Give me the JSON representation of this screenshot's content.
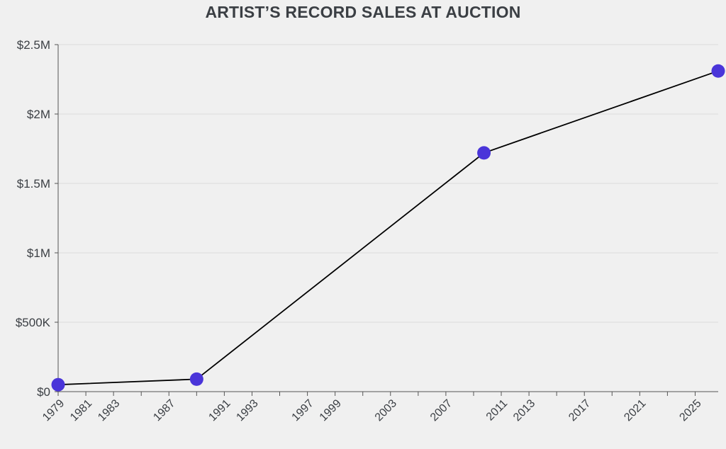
{
  "chart_data": {
    "type": "line",
    "title": "ARTIST’S RECORD SALES AT AUCTION",
    "xlabel": "",
    "ylabel": "",
    "x_axis": "date",
    "xlim": [
      "1979-01-01",
      "2026-09-01"
    ],
    "ylim": [
      0,
      2500000
    ],
    "y_ticks": [
      {
        "value": 0,
        "label": "$0"
      },
      {
        "value": 500000,
        "label": "$500K"
      },
      {
        "value": 1000000,
        "label": "$1M"
      },
      {
        "value": 1500000,
        "label": "$1.5M"
      },
      {
        "value": 2000000,
        "label": "$2M"
      },
      {
        "value": 2500000,
        "label": "$2.5M"
      }
    ],
    "x_ticks": [
      {
        "date": "1979-01-01",
        "label": "1979"
      },
      {
        "date": "1981-01-01",
        "label": "1981"
      },
      {
        "date": "1983-01-01",
        "label": "1983"
      },
      {
        "date": "1985-01-01",
        "label": ""
      },
      {
        "date": "1987-01-01",
        "label": "1987"
      },
      {
        "date": "1989-01-01",
        "label": ""
      },
      {
        "date": "1991-01-01",
        "label": "1991"
      },
      {
        "date": "1993-01-01",
        "label": "1993"
      },
      {
        "date": "1995-01-01",
        "label": ""
      },
      {
        "date": "1997-01-01",
        "label": "1997"
      },
      {
        "date": "1999-01-01",
        "label": "1999"
      },
      {
        "date": "2001-01-01",
        "label": ""
      },
      {
        "date": "2003-01-01",
        "label": "2003"
      },
      {
        "date": "2005-01-01",
        "label": ""
      },
      {
        "date": "2007-01-01",
        "label": "2007"
      },
      {
        "date": "2009-01-01",
        "label": ""
      },
      {
        "date": "2011-01-01",
        "label": "2011"
      },
      {
        "date": "2013-01-01",
        "label": "2013"
      },
      {
        "date": "2015-01-01",
        "label": ""
      },
      {
        "date": "2017-01-01",
        "label": "2017"
      },
      {
        "date": "2019-01-01",
        "label": ""
      },
      {
        "date": "2021-01-01",
        "label": "2021"
      },
      {
        "date": "2023-01-01",
        "label": ""
      },
      {
        "date": "2025-01-01",
        "label": "2025"
      }
    ],
    "grid": true,
    "legend": "none",
    "series": [
      {
        "points": [
          {
            "date": "1979-01-01",
            "value": 50000
          },
          {
            "date": "1989-01-01",
            "value": 90000
          },
          {
            "date": "2009-10-01",
            "value": 1720000
          },
          {
            "date": "2026-09-01",
            "value": 2310000
          }
        ]
      }
    ],
    "colors": {
      "point": "#4a35d9",
      "line": "#000000",
      "background": "#f0f0f0",
      "text": "#3b3f44"
    }
  }
}
